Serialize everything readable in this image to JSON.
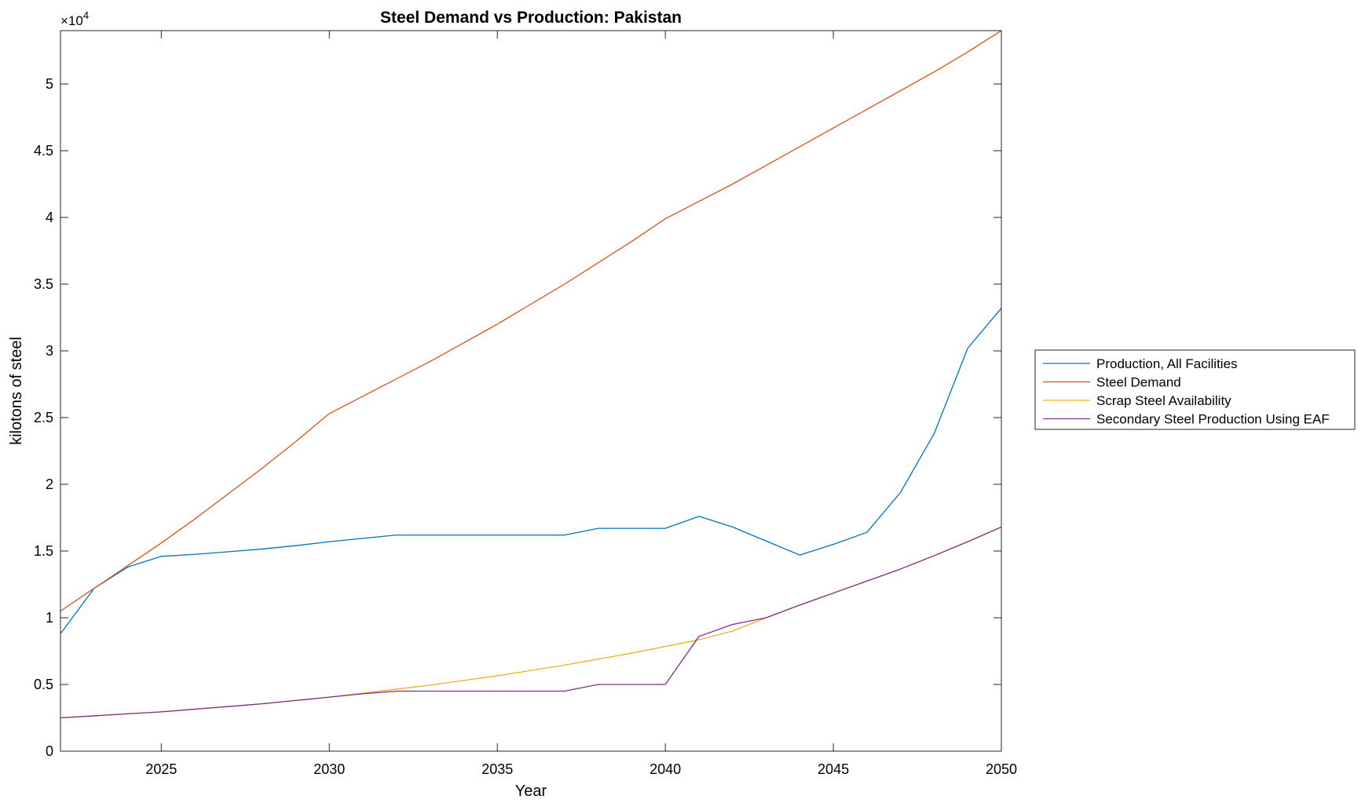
{
  "chart_data": {
    "type": "line",
    "title": "Steel Demand vs Production: Pakistan",
    "xlabel": "Year",
    "ylabel": "kilotons of steel",
    "exponent_label": "×10",
    "exponent_power": "4",
    "xlim": [
      2022,
      2050
    ],
    "ylim": [
      0,
      54000
    ],
    "xticks": [
      2025,
      2030,
      2035,
      2040,
      2045,
      2050
    ],
    "yticks": [
      0,
      5000,
      10000,
      15000,
      20000,
      25000,
      30000,
      35000,
      40000,
      45000,
      50000
    ],
    "ytick_labels": [
      "0",
      "0.5",
      "1",
      "1.5",
      "2",
      "2.5",
      "3",
      "3.5",
      "4",
      "4.5",
      "5"
    ],
    "grid": false,
    "legend_position": "outside-right",
    "series": [
      {
        "name": "Production, All Facilities",
        "color": "#0072BD",
        "x": [
          2022,
          2023,
          2024,
          2025,
          2026,
          2027,
          2028,
          2029,
          2030,
          2031,
          2032,
          2033,
          2034,
          2035,
          2036,
          2037,
          2038,
          2039,
          2040,
          2041,
          2042,
          2043,
          2044,
          2045,
          2046,
          2047,
          2048,
          2049,
          2050
        ],
        "values": [
          8800,
          12200,
          13800,
          14600,
          14750,
          14950,
          15150,
          15400,
          15700,
          15950,
          16200,
          16200,
          16200,
          16200,
          16200,
          16200,
          16700,
          16700,
          16700,
          17600,
          16800,
          15750,
          14700,
          15500,
          16400,
          19400,
          23800,
          30200,
          33200
        ]
      },
      {
        "name": "Steel Demand",
        "color": "#D95319",
        "x": [
          2022,
          2023,
          2024,
          2025,
          2026,
          2027,
          2028,
          2029,
          2030,
          2031,
          2032,
          2033,
          2034,
          2035,
          2036,
          2037,
          2038,
          2039,
          2040,
          2041,
          2042,
          2043,
          2044,
          2045,
          2046,
          2047,
          2048,
          2049,
          2050
        ],
        "values": [
          10500,
          12200,
          13900,
          15600,
          17400,
          19300,
          21200,
          23200,
          25300,
          26600,
          27900,
          29200,
          30600,
          32000,
          33500,
          35000,
          36600,
          38200,
          39900,
          41200,
          42500,
          43900,
          45300,
          46700,
          48100,
          49500,
          50900,
          52400,
          54000
        ]
      },
      {
        "name": "Scrap Steel Availability",
        "color": "#EDB120",
        "x": [
          2022,
          2023,
          2024,
          2025,
          2026,
          2027,
          2028,
          2029,
          2030,
          2031,
          2032,
          2033,
          2034,
          2035,
          2036,
          2037,
          2038,
          2039,
          2040,
          2041,
          2042,
          2043,
          2044,
          2045,
          2046,
          2047,
          2048,
          2049,
          2050
        ],
        "values": [
          2500,
          2650,
          2800,
          2950,
          3150,
          3350,
          3550,
          3800,
          4050,
          4350,
          4650,
          4950,
          5300,
          5650,
          6050,
          6450,
          6900,
          7350,
          7850,
          8350,
          9000,
          10000,
          10950,
          11850,
          12750,
          13650,
          14650,
          15700,
          16800
        ]
      },
      {
        "name": "Secondary Steel Production Using EAF",
        "color": "#7E2F8E",
        "x": [
          2022,
          2023,
          2024,
          2025,
          2026,
          2027,
          2028,
          2029,
          2030,
          2031,
          2032,
          2033,
          2034,
          2035,
          2036,
          2037,
          2038,
          2039,
          2040,
          2041,
          2042,
          2043,
          2044,
          2045,
          2046,
          2047,
          2048,
          2049,
          2050
        ],
        "values": [
          2500,
          2650,
          2800,
          2950,
          3150,
          3350,
          3550,
          3800,
          4050,
          4300,
          4500,
          4500,
          4500,
          4500,
          4500,
          4500,
          5000,
          5000,
          5000,
          8600,
          9500,
          10000,
          10950,
          11850,
          12750,
          13650,
          14650,
          15700,
          16800
        ]
      }
    ]
  }
}
